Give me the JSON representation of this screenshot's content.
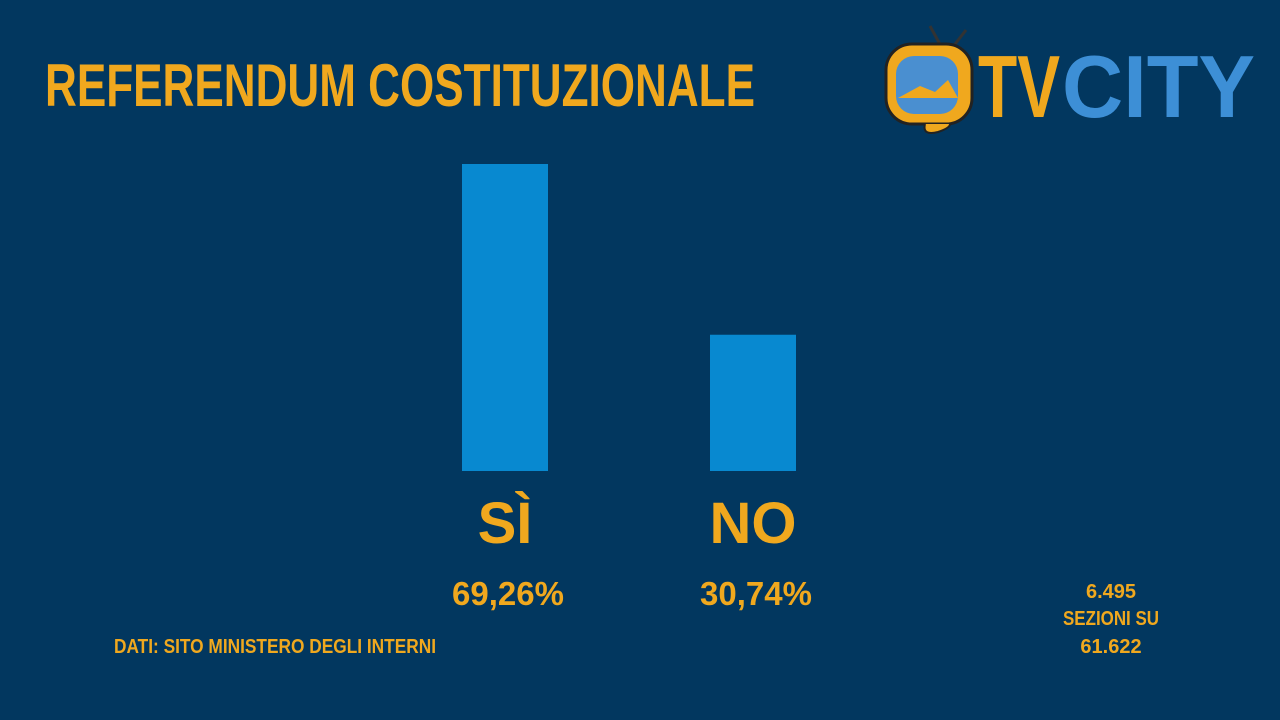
{
  "chart_data": {
    "type": "bar",
    "title": "REFERENDUM COSTITUZIONALE",
    "categories": [
      "SÌ",
      "NO"
    ],
    "values": [
      69.26,
      30.74
    ],
    "value_labels": [
      "69,26%",
      "30,74%"
    ],
    "color": "#0889d0"
  },
  "source": "DATI: SITO MINISTERO DEGLI INTERNI",
  "sections_note": [
    "6.495",
    "SEZIONI SU",
    "61.622"
  ],
  "logo": {
    "left": "TV",
    "right": "CITY"
  }
}
